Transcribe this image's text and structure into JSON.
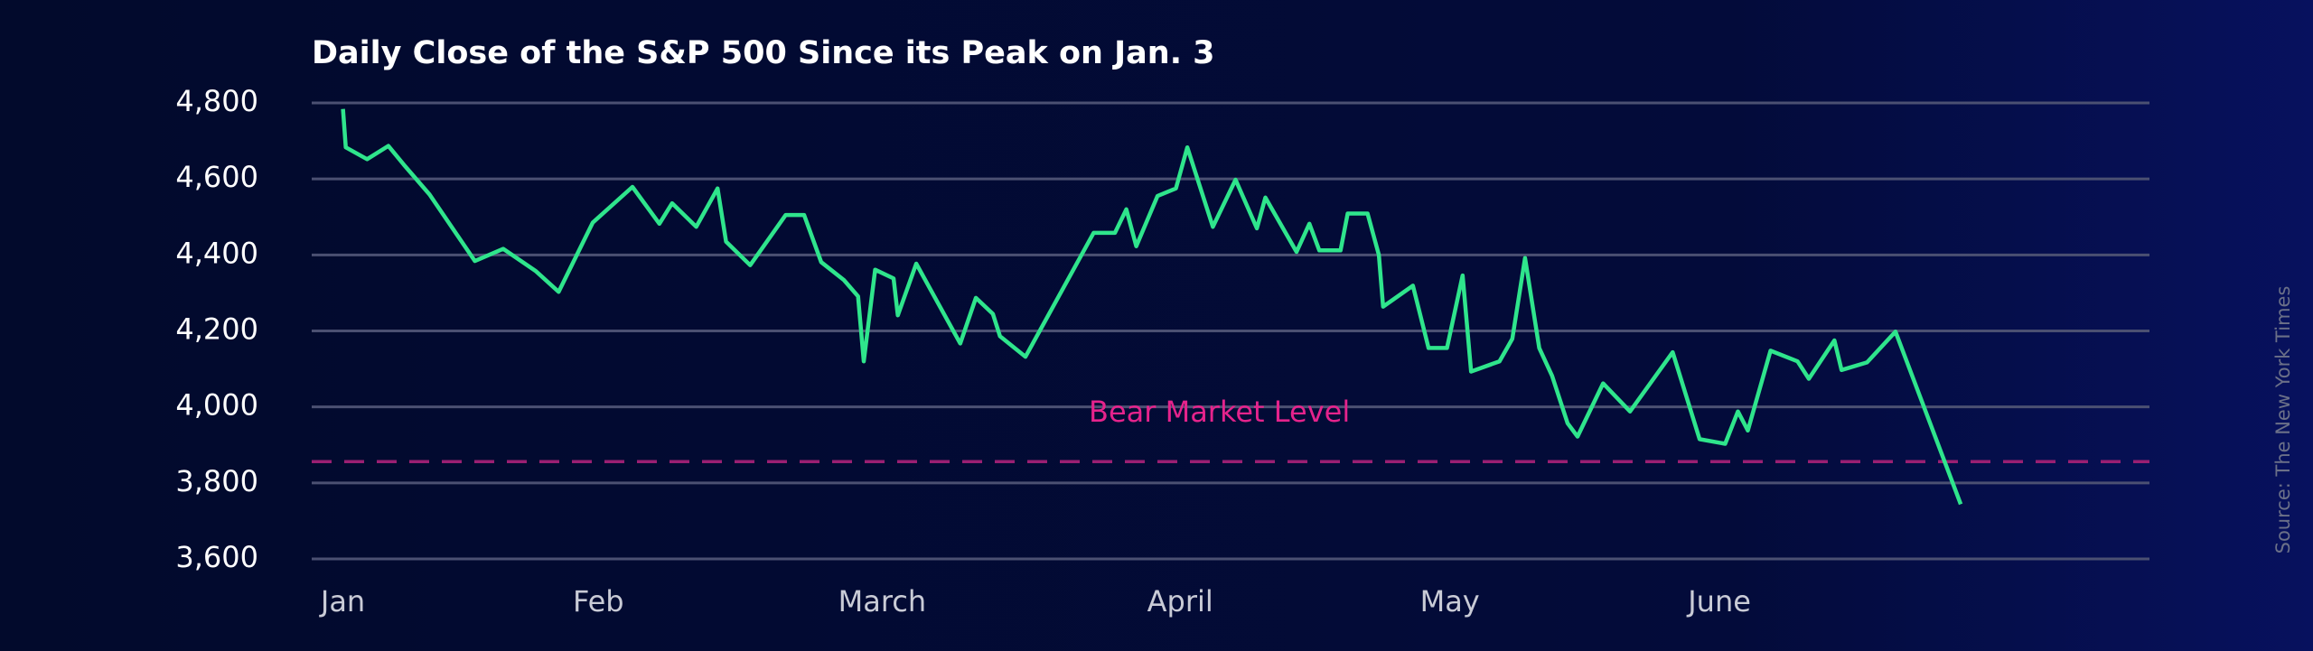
{
  "chart_data": {
    "type": "line",
    "title": "Daily Close of the S&P 500 Since its Peak on Jan. 3",
    "source": "Source: The New York Times",
    "x": [
      0,
      0.2,
      1.7,
      3.2,
      4.3,
      6.1,
      9.3,
      11.3,
      13.6,
      15.2,
      17.6,
      20.4,
      22.3,
      23.2,
      24.9,
      26.4,
      27.0,
      28.7,
      31.2,
      32.5,
      33.7,
      35.3,
      36.3,
      36.7,
      37.5,
      38.8,
      39.1,
      40.4,
      43.5,
      44.6,
      45.8,
      46.3,
      48.1,
      52.9,
      54.4,
      55.2,
      55.9,
      57.4,
      58.7,
      59.5,
      61.3,
      62.9,
      64.4,
      65.0,
      67.2,
      68.1,
      68.8,
      70.3,
      70.8,
      72.2,
      73.0,
      73.3,
      75.4,
      76.5,
      77.8,
      78.9,
      79.5,
      81.5,
      82.4,
      83.3,
      84.3,
      85.2,
      86.3,
      87.0,
      88.8,
      90.7,
      93.7,
      95.6,
      97.4,
      98.3,
      99.0,
      100.6,
      102.5,
      103.3,
      105.1,
      105.6,
      107.4,
      109.4,
      114.0
    ],
    "series": [
      {
        "name": "S&P 500",
        "color": "#2fe58c",
        "values": [
          4784,
          4683,
          4652,
          4687,
          4637,
          4559,
          4384,
          4416,
          4357,
          4303,
          4485,
          4579,
          4482,
          4536,
          4474,
          4575,
          4435,
          4373,
          4505,
          4505,
          4381,
          4334,
          4291,
          4120,
          4361,
          4338,
          4241,
          4377,
          4167,
          4287,
          4245,
          4186,
          4132,
          4458,
          4458,
          4520,
          4423,
          4555,
          4575,
          4683,
          4474,
          4598,
          4470,
          4551,
          4408,
          4482,
          4412,
          4412,
          4509,
          4509,
          4400,
          4264,
          4319,
          4155,
          4155,
          4346,
          4093,
          4120,
          4179,
          4392,
          4155,
          4082,
          3957,
          3922,
          4062,
          3988,
          4144,
          3915,
          3903,
          3988,
          3938,
          4148,
          4120,
          4074,
          4175,
          4097,
          4117,
          4198,
          3744
        ]
      }
    ],
    "reference_line": {
      "label": "Bear Market Level",
      "value": 3856,
      "color": "#9a1f72",
      "label_color": "#e5238c"
    },
    "xlim": [
      -2.2,
      127.3
    ],
    "xticks": [
      {
        "value": 0,
        "label": "Jan"
      },
      {
        "value": 18,
        "label": "Feb"
      },
      {
        "value": 38,
        "label": "March"
      },
      {
        "value": 59,
        "label": "April"
      },
      {
        "value": 78,
        "label": "May"
      },
      {
        "value": 97,
        "label": "June"
      }
    ],
    "ylim": [
      3600,
      4800
    ],
    "yticks": [
      {
        "value": 3600,
        "label": "3,600"
      },
      {
        "value": 3800,
        "label": "3,800"
      },
      {
        "value": 4000,
        "label": "4,000"
      },
      {
        "value": 4200,
        "label": "4,200"
      },
      {
        "value": 4400,
        "label": "4,400"
      },
      {
        "value": 4600,
        "label": "4,600"
      },
      {
        "value": 4800,
        "label": "4,800"
      }
    ],
    "grid": true
  }
}
